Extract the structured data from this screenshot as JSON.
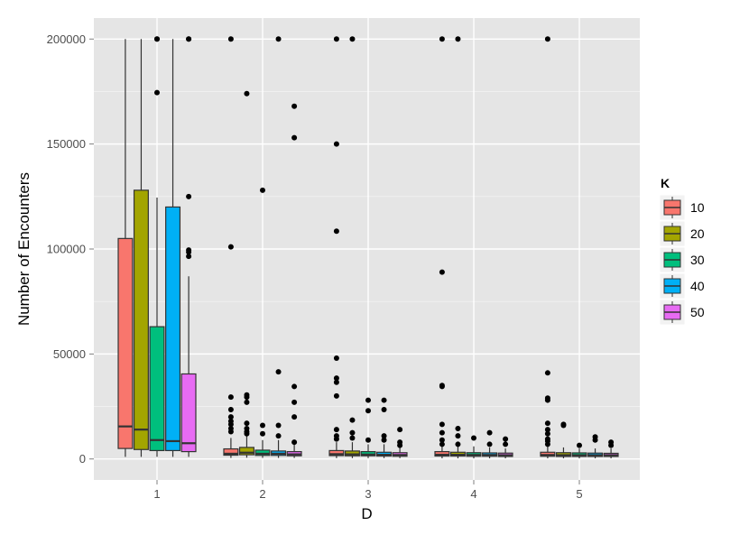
{
  "chart_data": {
    "type": "boxplot",
    "xlabel": "D",
    "ylabel": "Number of Encounters",
    "x_categories": [
      "1",
      "2",
      "3",
      "4",
      "5"
    ],
    "y_ticks": [
      0,
      50000,
      100000,
      150000,
      200000
    ],
    "y_tick_labels": [
      "0",
      "50000",
      "100000",
      "150000",
      "200000"
    ],
    "ylim": [
      -10000,
      210000
    ],
    "grid": true,
    "legend": {
      "title": "K",
      "position": "right",
      "entries": [
        {
          "label": "10",
          "color": "#F8766D"
        },
        {
          "label": "20",
          "color": "#A3A500"
        },
        {
          "label": "30",
          "color": "#00BF7D"
        },
        {
          "label": "40",
          "color": "#00B0F6"
        },
        {
          "label": "50",
          "color": "#E76BF3"
        }
      ]
    },
    "series": [
      {
        "name": "10",
        "boxes": [
          {
            "d": "1",
            "lower": 1000,
            "q1": 5000,
            "median": 15500,
            "q3": 105000,
            "upper": 200000,
            "outliers": []
          },
          {
            "d": "2",
            "lower": 500,
            "q1": 1800,
            "median": 2500,
            "q3": 4800,
            "upper": 10000,
            "outliers": [
              200000,
              101000,
              29500,
              23500,
              20000,
              18000,
              16500,
              14500,
              13000
            ]
          },
          {
            "d": "3",
            "lower": 400,
            "q1": 1600,
            "median": 2300,
            "q3": 4000,
            "upper": 8000,
            "outliers": [
              200000,
              150000,
              108500,
              48000,
              38500,
              36500,
              30000,
              14000,
              11000,
              9500
            ]
          },
          {
            "d": "4",
            "lower": 300,
            "q1": 1400,
            "median": 2000,
            "q3": 3500,
            "upper": 6500,
            "outliers": [
              200000,
              89000,
              35000,
              34500,
              16500,
              12500,
              9000,
              7000
            ]
          },
          {
            "d": "5",
            "lower": 300,
            "q1": 1300,
            "median": 1900,
            "q3": 3200,
            "upper": 6000,
            "outliers": [
              200000,
              41000,
              29000,
              28000,
              17000,
              14000,
              12000,
              9500,
              8500,
              7000
            ]
          }
        ]
      },
      {
        "name": "20",
        "boxes": [
          {
            "d": "1",
            "lower": 1000,
            "q1": 4500,
            "median": 14000,
            "q3": 128000,
            "upper": 200000,
            "outliers": []
          },
          {
            "d": "2",
            "lower": 600,
            "q1": 2000,
            "median": 3000,
            "q3": 5500,
            "upper": 11000,
            "outliers": [
              174000,
              30500,
              29500,
              27000,
              17000,
              14500,
              13000,
              12000
            ]
          },
          {
            "d": "3",
            "lower": 400,
            "q1": 1500,
            "median": 2200,
            "q3": 3800,
            "upper": 8000,
            "outliers": [
              200000,
              18500,
              12500,
              10000
            ]
          },
          {
            "d": "4",
            "lower": 300,
            "q1": 1400,
            "median": 2000,
            "q3": 3200,
            "upper": 6000,
            "outliers": [
              200000,
              14500,
              11000,
              7000
            ]
          },
          {
            "d": "5",
            "lower": 300,
            "q1": 1200,
            "median": 1800,
            "q3": 3000,
            "upper": 5500,
            "outliers": [
              16500,
              16000
            ]
          }
        ]
      },
      {
        "name": "30",
        "boxes": [
          {
            "d": "1",
            "lower": 1000,
            "q1": 4000,
            "median": 9000,
            "q3": 63000,
            "upper": 124500,
            "outliers": [
              200000,
              200000,
              174500
            ]
          },
          {
            "d": "2",
            "lower": 500,
            "q1": 1700,
            "median": 2500,
            "q3": 4200,
            "upper": 9000,
            "outliers": [
              128000,
              16000,
              12000
            ]
          },
          {
            "d": "3",
            "lower": 400,
            "q1": 1500,
            "median": 2100,
            "q3": 3500,
            "upper": 7000,
            "outliers": [
              28000,
              23000,
              9000
            ]
          },
          {
            "d": "4",
            "lower": 300,
            "q1": 1300,
            "median": 1900,
            "q3": 3000,
            "upper": 6000,
            "outliers": [
              10000
            ]
          },
          {
            "d": "5",
            "lower": 300,
            "q1": 1200,
            "median": 1800,
            "q3": 2900,
            "upper": 5000,
            "outliers": [
              6500
            ]
          }
        ]
      },
      {
        "name": "40",
        "boxes": [
          {
            "d": "1",
            "lower": 1000,
            "q1": 4000,
            "median": 8500,
            "q3": 120000,
            "upper": 200000,
            "outliers": []
          },
          {
            "d": "2",
            "lower": 500,
            "q1": 1700,
            "median": 2500,
            "q3": 3800,
            "upper": 9000,
            "outliers": [
              200000,
              41500,
              16000,
              11000
            ]
          },
          {
            "d": "3",
            "lower": 400,
            "q1": 1400,
            "median": 2000,
            "q3": 3200,
            "upper": 7000,
            "outliers": [
              28000,
              23500,
              11000,
              9000
            ]
          },
          {
            "d": "4",
            "lower": 300,
            "q1": 1300,
            "median": 1900,
            "q3": 2900,
            "upper": 5500,
            "outliers": [
              12500,
              7000
            ]
          },
          {
            "d": "5",
            "lower": 300,
            "q1": 1200,
            "median": 1800,
            "q3": 2800,
            "upper": 5000,
            "outliers": [
              10500,
              9000
            ]
          }
        ]
      },
      {
        "name": "50",
        "boxes": [
          {
            "d": "1",
            "lower": 1000,
            "q1": 3500,
            "median": 7500,
            "q3": 40500,
            "upper": 87000,
            "outliers": [
              200000,
              200000,
              125000,
              99500,
              98500,
              96500
            ]
          },
          {
            "d": "2",
            "lower": 500,
            "q1": 1500,
            "median": 2200,
            "q3": 3500,
            "upper": 7000,
            "outliers": [
              168000,
              153000,
              34500,
              27000,
              20000,
              8000
            ]
          },
          {
            "d": "3",
            "lower": 400,
            "q1": 1300,
            "median": 1900,
            "q3": 3000,
            "upper": 6500,
            "outliers": [
              14000,
              8000,
              6500
            ]
          },
          {
            "d": "4",
            "lower": 300,
            "q1": 1200,
            "median": 1800,
            "q3": 2800,
            "upper": 5000,
            "outliers": [
              9500,
              7000
            ]
          },
          {
            "d": "5",
            "lower": 300,
            "q1": 1200,
            "median": 1800,
            "q3": 2700,
            "upper": 5000,
            "outliers": [
              8000,
              6500
            ]
          }
        ]
      }
    ]
  }
}
